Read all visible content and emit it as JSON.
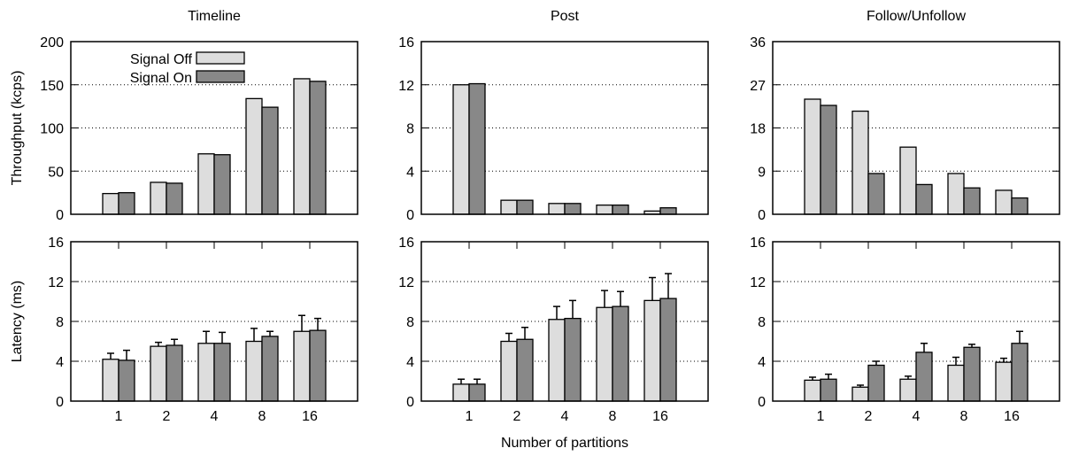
{
  "chart_data": [
    {
      "type": "bar",
      "row": "throughput",
      "title": "Timeline",
      "categories": [
        "1",
        "2",
        "4",
        "8",
        "16"
      ],
      "ylabel": "Throughput (kcps)",
      "xlabel": "",
      "ylim": [
        0,
        200
      ],
      "yticks": [
        0,
        50,
        100,
        150,
        200
      ],
      "grid": true,
      "legend": "top-left",
      "series": [
        {
          "name": "Signal Off",
          "values": [
            24,
            37,
            70,
            134,
            157
          ],
          "color": "#dddddd"
        },
        {
          "name": "Signal On",
          "values": [
            25,
            36,
            69,
            124,
            154
          ],
          "color": "#888888"
        }
      ]
    },
    {
      "type": "bar",
      "row": "throughput",
      "title": "Post",
      "categories": [
        "1",
        "2",
        "4",
        "8",
        "16"
      ],
      "ylabel": "",
      "xlabel": "",
      "ylim": [
        0,
        16
      ],
      "yticks": [
        0,
        4,
        8,
        12,
        16
      ],
      "grid": true,
      "series": [
        {
          "name": "Signal Off",
          "values": [
            12.0,
            1.3,
            1.0,
            0.85,
            0.3
          ],
          "color": "#dddddd"
        },
        {
          "name": "Signal On",
          "values": [
            12.1,
            1.3,
            1.0,
            0.85,
            0.6
          ],
          "color": "#888888"
        }
      ]
    },
    {
      "type": "bar",
      "row": "throughput",
      "title": "Follow/Unfollow",
      "categories": [
        "1",
        "2",
        "4",
        "8",
        "16"
      ],
      "ylabel": "",
      "xlabel": "",
      "ylim": [
        0,
        36
      ],
      "yticks": [
        0,
        9,
        18,
        27,
        36
      ],
      "grid": true,
      "series": [
        {
          "name": "Signal Off",
          "values": [
            24,
            21.5,
            14,
            8.5,
            5
          ],
          "color": "#dddddd"
        },
        {
          "name": "Signal On",
          "values": [
            22.7,
            8.5,
            6.2,
            5.5,
            3.4
          ],
          "color": "#888888"
        }
      ]
    },
    {
      "type": "bar",
      "row": "latency",
      "title": "",
      "categories": [
        "1",
        "2",
        "4",
        "8",
        "16"
      ],
      "ylabel": "Latency (ms)",
      "xlabel": "",
      "ylim": [
        0,
        16
      ],
      "yticks": [
        0,
        4,
        8,
        12,
        16
      ],
      "grid": true,
      "series": [
        {
          "name": "Signal Off",
          "values": [
            4.2,
            5.5,
            5.8,
            6.0,
            7.0
          ],
          "errors": [
            0.6,
            0.4,
            1.2,
            1.3,
            1.6
          ],
          "color": "#dddddd"
        },
        {
          "name": "Signal On",
          "values": [
            4.1,
            5.6,
            5.8,
            6.5,
            7.1
          ],
          "errors": [
            1.0,
            0.6,
            1.1,
            0.5,
            1.2
          ],
          "color": "#888888"
        }
      ]
    },
    {
      "type": "bar",
      "row": "latency",
      "title": "",
      "categories": [
        "1",
        "2",
        "4",
        "8",
        "16"
      ],
      "ylabel": "",
      "xlabel": "Number of partitions",
      "ylim": [
        0,
        16
      ],
      "yticks": [
        0,
        4,
        8,
        12,
        16
      ],
      "grid": true,
      "series": [
        {
          "name": "Signal Off",
          "values": [
            1.7,
            6.0,
            8.2,
            9.4,
            10.1
          ],
          "errors": [
            0.5,
            0.8,
            1.3,
            1.7,
            2.3
          ],
          "color": "#dddddd"
        },
        {
          "name": "Signal On",
          "values": [
            1.7,
            6.2,
            8.3,
            9.5,
            10.3
          ],
          "errors": [
            0.5,
            1.2,
            1.8,
            1.5,
            2.5
          ],
          "color": "#888888"
        }
      ]
    },
    {
      "type": "bar",
      "row": "latency",
      "title": "",
      "categories": [
        "1",
        "2",
        "4",
        "8",
        "16"
      ],
      "ylabel": "",
      "xlabel": "",
      "ylim": [
        0,
        16
      ],
      "yticks": [
        0,
        4,
        8,
        12,
        16
      ],
      "grid": true,
      "series": [
        {
          "name": "Signal Off",
          "values": [
            2.1,
            1.4,
            2.2,
            3.6,
            3.9
          ],
          "errors": [
            0.3,
            0.2,
            0.3,
            0.8,
            0.4
          ],
          "color": "#dddddd"
        },
        {
          "name": "Signal On",
          "values": [
            2.2,
            3.6,
            4.9,
            5.4,
            5.8
          ],
          "errors": [
            0.5,
            0.4,
            0.9,
            0.3,
            1.2
          ],
          "color": "#888888"
        }
      ]
    }
  ]
}
